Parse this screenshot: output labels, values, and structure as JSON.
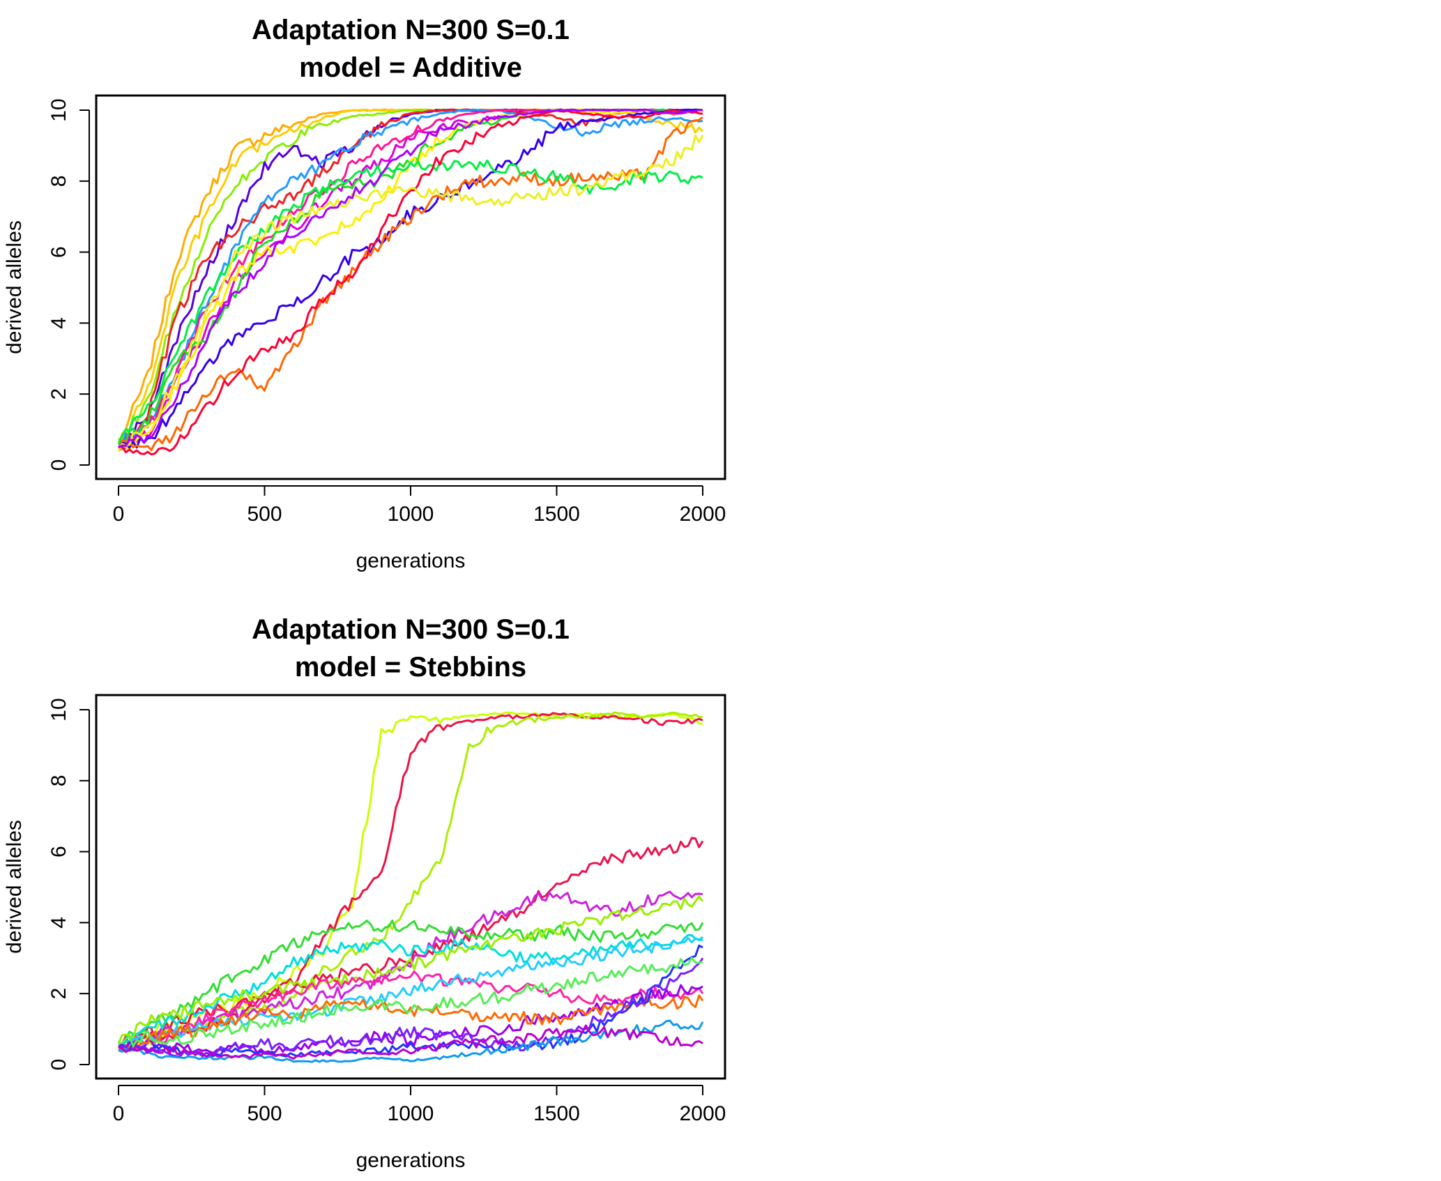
{
  "chart_data": [
    {
      "type": "line",
      "title": [
        "Adaptation N=300 S=0.1",
        "model = Additive"
      ],
      "xlabel": "generations",
      "ylabel": "derived alleles",
      "xlim": [
        0,
        2000
      ],
      "ylim": [
        0,
        10
      ],
      "x_ticks": [
        "0",
        "500",
        "1000",
        "1500",
        "2000"
      ],
      "y_ticks": [
        "0",
        "2",
        "4",
        "6",
        "8",
        "10"
      ],
      "grid": false,
      "legend": "none",
      "x": [
        0,
        100,
        200,
        300,
        400,
        500,
        600,
        700,
        800,
        900,
        1000,
        1100,
        1200,
        1300,
        1400,
        1500,
        1600,
        1700,
        1800,
        1900,
        2000
      ],
      "series": [
        {
          "color": "#ffaa00",
          "values": [
            0.6,
            2.5,
            5.8,
            7.6,
            8.9,
            9.3,
            9.6,
            9.9,
            10.0,
            10.0,
            10.0,
            10.0,
            10.0,
            10.0,
            10.0,
            10.0,
            10.0,
            10.0,
            10.0,
            10.0,
            10.0
          ]
        },
        {
          "color": "#ffcc00",
          "values": [
            0.5,
            2.1,
            5.2,
            7.0,
            8.5,
            9.1,
            9.4,
            9.8,
            10.0,
            10.0,
            10.0,
            10.0,
            10.0,
            10.0,
            10.0,
            10.0,
            9.9,
            10.0,
            9.8,
            9.6,
            9.4
          ]
        },
        {
          "color": "#88ee00",
          "values": [
            0.7,
            1.8,
            4.5,
            6.5,
            7.9,
            8.6,
            9.2,
            9.6,
            9.8,
            9.9,
            10.0,
            10.0,
            10.0,
            10.0,
            10.0,
            10.0,
            10.0,
            10.0,
            10.0,
            9.9,
            10.0
          ]
        },
        {
          "color": "#5500dd",
          "values": [
            0.5,
            1.4,
            3.6,
            5.4,
            7.0,
            8.4,
            8.9,
            8.5,
            9.0,
            9.6,
            9.9,
            10.0,
            10.0,
            10.0,
            10.0,
            10.0,
            10.0,
            10.0,
            10.0,
            10.0,
            10.0
          ]
        },
        {
          "color": "#ee2222",
          "values": [
            0.4,
            1.5,
            4.2,
            5.9,
            6.6,
            7.2,
            7.6,
            8.3,
            9.0,
            9.6,
            9.9,
            10.0,
            10.0,
            10.0,
            9.9,
            9.8,
            9.6,
            9.9,
            10.0,
            9.9,
            10.0
          ]
        },
        {
          "color": "#2299ff",
          "values": [
            0.6,
            1.1,
            2.7,
            4.5,
            6.2,
            7.4,
            8.1,
            8.4,
            9.1,
            9.3,
            9.7,
            9.9,
            10.0,
            10.0,
            9.8,
            9.5,
            9.4,
            9.6,
            9.7,
            9.8,
            9.7
          ]
        },
        {
          "color": "#dd00dd",
          "values": [
            0.5,
            0.9,
            2.4,
            3.8,
            5.1,
            6.0,
            6.7,
            7.4,
            8.0,
            8.6,
            9.2,
            9.5,
            9.7,
            9.8,
            9.9,
            10.0,
            10.0,
            10.0,
            10.0,
            10.0,
            10.0
          ]
        },
        {
          "color": "#ff1493",
          "values": [
            0.5,
            1.0,
            2.6,
            4.4,
            5.5,
            6.4,
            7.1,
            7.8,
            8.4,
            9.0,
            9.4,
            9.7,
            9.9,
            10.0,
            10.0,
            10.0,
            10.0,
            10.0,
            10.0,
            9.9,
            10.0
          ]
        },
        {
          "color": "#22dd22",
          "values": [
            0.5,
            1.3,
            2.9,
            3.6,
            4.9,
            6.4,
            6.8,
            7.7,
            7.9,
            8.0,
            8.6,
            9.2,
            9.5,
            9.7,
            9.9,
            10.0,
            10.0,
            10.0,
            10.0,
            10.0,
            10.0
          ]
        },
        {
          "color": "#ffee00",
          "values": [
            0.4,
            0.8,
            2.3,
            4.0,
            5.3,
            6.0,
            6.1,
            6.4,
            6.9,
            7.5,
            8.4,
            9.2,
            9.6,
            9.8,
            9.9,
            10.0,
            10.0,
            9.9,
            10.0,
            9.9,
            10.0
          ]
        },
        {
          "color": "#3300ee",
          "values": [
            0.5,
            0.7,
            1.6,
            2.8,
            3.6,
            4.1,
            4.5,
            5.2,
            5.9,
            6.3,
            7.1,
            7.5,
            7.9,
            8.3,
            8.8,
            9.5,
            9.7,
            9.8,
            9.9,
            10.0,
            10.0
          ]
        },
        {
          "color": "#ff6600",
          "values": [
            0.6,
            0.5,
            0.9,
            2.1,
            2.6,
            2.2,
            3.3,
            4.6,
            5.4,
            6.3,
            7.0,
            7.6,
            8.0,
            8.0,
            8.1,
            8.0,
            8.1,
            8.1,
            8.2,
            9.3,
            9.8
          ]
        },
        {
          "color": "#00ee44",
          "values": [
            0.6,
            1.6,
            3.1,
            4.8,
            5.9,
            6.6,
            7.3,
            7.8,
            8.1,
            8.3,
            8.4,
            8.4,
            8.5,
            8.4,
            8.2,
            8.1,
            7.8,
            7.9,
            8.1,
            8.1,
            8.1
          ]
        },
        {
          "color": "#ff0033",
          "values": [
            0.5,
            0.3,
            0.6,
            1.6,
            2.6,
            3.2,
            3.6,
            4.7,
            5.4,
            6.6,
            7.8,
            8.6,
            9.1,
            9.5,
            9.8,
            10.0,
            9.9,
            9.8,
            9.8,
            10.0,
            9.9
          ]
        },
        {
          "color": "#eeee22",
          "values": [
            0.5,
            1.0,
            2.4,
            4.3,
            5.9,
            6.6,
            7.0,
            7.3,
            7.5,
            7.6,
            7.7,
            7.6,
            7.5,
            7.4,
            7.6,
            7.7,
            7.8,
            8.1,
            8.3,
            8.6,
            9.3
          ]
        },
        {
          "color": "#aa00ff",
          "values": [
            0.5,
            0.8,
            1.9,
            3.6,
            4.8,
            5.8,
            6.5,
            7.0,
            7.6,
            8.2,
            8.9,
            9.4,
            9.6,
            9.8,
            9.9,
            10.0,
            10.0,
            10.0,
            10.0,
            9.9,
            10.0
          ]
        }
      ]
    },
    {
      "type": "line",
      "title": [
        "Adaptation N=300 S=0.1",
        "model = Stebbins"
      ],
      "xlabel": "generations",
      "ylabel": "derived alleles",
      "xlim": [
        0,
        2000
      ],
      "ylim": [
        0,
        10
      ],
      "x_ticks": [
        "0",
        "500",
        "1000",
        "1500",
        "2000"
      ],
      "y_ticks": [
        "0",
        "2",
        "4",
        "6",
        "8",
        "10"
      ],
      "grid": false,
      "legend": "none",
      "x": [
        0,
        100,
        200,
        300,
        400,
        500,
        600,
        700,
        800,
        900,
        1000,
        1100,
        1200,
        1300,
        1400,
        1500,
        1600,
        1700,
        1800,
        1900,
        2000
      ],
      "series": [
        {
          "color": "#ccff00",
          "values": [
            0.5,
            0.9,
            1.1,
            1.4,
            1.7,
            2.0,
            2.6,
            3.2,
            4.6,
            9.3,
            9.8,
            9.7,
            9.8,
            9.9,
            9.9,
            9.8,
            9.9,
            9.8,
            9.8,
            9.9,
            9.6
          ]
        },
        {
          "color": "#ee1144",
          "values": [
            0.6,
            0.8,
            1.2,
            1.5,
            1.6,
            1.9,
            2.4,
            3.5,
            4.6,
            5.4,
            8.8,
            9.5,
            9.7,
            9.8,
            9.8,
            9.9,
            9.8,
            9.8,
            9.7,
            9.6,
            9.7
          ]
        },
        {
          "color": "#aaee00",
          "values": [
            0.4,
            0.7,
            0.9,
            1.1,
            1.5,
            1.6,
            1.9,
            2.6,
            3.1,
            3.6,
            4.6,
            5.7,
            8.9,
            9.6,
            9.7,
            9.8,
            9.8,
            9.9,
            9.8,
            9.9,
            9.8
          ]
        },
        {
          "color": "#e8154f",
          "values": [
            0.5,
            0.9,
            0.8,
            1.1,
            1.3,
            1.8,
            2.2,
            2.4,
            2.6,
            2.8,
            3.0,
            3.3,
            3.6,
            4.0,
            4.5,
            5.1,
            5.6,
            5.8,
            6.0,
            6.1,
            6.3
          ]
        },
        {
          "color": "#cc22dd",
          "values": [
            0.5,
            0.8,
            1.0,
            1.2,
            1.4,
            1.5,
            1.7,
            1.9,
            2.1,
            2.4,
            2.9,
            3.5,
            3.9,
            4.2,
            4.6,
            4.8,
            4.5,
            4.3,
            4.6,
            4.8,
            4.8
          ]
        },
        {
          "color": "#33dd33",
          "values": [
            0.6,
            1.1,
            1.5,
            2.0,
            2.5,
            2.9,
            3.4,
            3.8,
            3.9,
            3.9,
            3.9,
            3.8,
            3.7,
            3.7,
            3.6,
            3.8,
            3.6,
            3.6,
            3.7,
            3.8,
            4.0
          ]
        },
        {
          "color": "#00dddd",
          "values": [
            0.5,
            1.0,
            1.3,
            1.6,
            2.0,
            2.3,
            2.9,
            3.2,
            3.3,
            3.4,
            3.2,
            3.3,
            3.4,
            3.2,
            3.0,
            3.0,
            3.1,
            3.3,
            3.4,
            3.5,
            3.5
          ]
        },
        {
          "color": "#99ee00",
          "values": [
            0.6,
            1.2,
            1.4,
            1.7,
            1.9,
            2.0,
            2.2,
            2.3,
            2.4,
            2.6,
            2.8,
            3.0,
            3.2,
            3.4,
            3.6,
            3.8,
            4.0,
            4.2,
            4.3,
            4.5,
            4.6
          ]
        },
        {
          "color": "#ff22aa",
          "values": [
            0.4,
            0.6,
            0.9,
            1.3,
            1.6,
            1.8,
            2.0,
            2.2,
            2.3,
            2.4,
            2.5,
            2.4,
            2.3,
            2.1,
            2.2,
            2.0,
            1.8,
            1.9,
            2.0,
            2.0,
            2.0
          ]
        },
        {
          "color": "#22ccff",
          "values": [
            0.5,
            0.7,
            0.9,
            1.1,
            1.2,
            1.3,
            1.4,
            1.5,
            1.7,
            1.9,
            2.1,
            2.3,
            2.4,
            2.6,
            2.8,
            2.9,
            3.0,
            3.2,
            3.3,
            3.4,
            3.6
          ]
        },
        {
          "color": "#9900ee",
          "values": [
            0.5,
            0.6,
            0.5,
            0.4,
            0.5,
            0.4,
            0.5,
            0.6,
            0.7,
            0.8,
            0.7,
            0.8,
            0.9,
            1.0,
            1.2,
            1.3,
            1.5,
            1.7,
            1.9,
            2.1,
            2.2
          ]
        },
        {
          "color": "#ff6a00",
          "values": [
            0.4,
            0.7,
            0.9,
            1.0,
            1.3,
            1.5,
            1.4,
            1.6,
            1.7,
            1.6,
            1.5,
            1.5,
            1.4,
            1.4,
            1.3,
            1.3,
            1.4,
            1.6,
            1.8,
            1.7,
            1.8
          ]
        },
        {
          "color": "#2233ff",
          "values": [
            0.5,
            0.5,
            0.4,
            0.3,
            0.4,
            0.3,
            0.3,
            0.3,
            0.4,
            0.4,
            0.5,
            0.5,
            0.6,
            0.5,
            0.5,
            0.6,
            0.9,
            1.3,
            1.8,
            2.6,
            3.3
          ]
        },
        {
          "color": "#7722ff",
          "values": [
            0.5,
            0.4,
            0.3,
            0.3,
            0.5,
            0.6,
            0.5,
            0.7,
            0.6,
            0.8,
            0.9,
            0.8,
            0.7,
            0.6,
            0.5,
            0.7,
            1.1,
            1.5,
            1.9,
            2.4,
            3.0
          ]
        },
        {
          "color": "#55ee55",
          "values": [
            0.6,
            0.8,
            0.7,
            0.9,
            1.0,
            1.2,
            1.3,
            1.5,
            1.6,
            1.7,
            1.6,
            1.7,
            1.8,
            1.9,
            2.1,
            2.2,
            2.4,
            2.6,
            2.7,
            2.8,
            2.9
          ]
        },
        {
          "color": "#1199ee",
          "values": [
            0.4,
            0.3,
            0.2,
            0.2,
            0.2,
            0.2,
            0.1,
            0.1,
            0.1,
            0.2,
            0.1,
            0.2,
            0.3,
            0.4,
            0.5,
            0.7,
            0.8,
            0.9,
            1.0,
            1.1,
            1.2
          ]
        },
        {
          "color": "#bb00cc",
          "values": [
            0.5,
            0.4,
            0.4,
            0.3,
            0.2,
            0.3,
            0.2,
            0.3,
            0.4,
            0.3,
            0.4,
            0.5,
            0.6,
            0.7,
            0.8,
            0.9,
            1.0,
            0.9,
            0.8,
            0.7,
            0.6
          ]
        }
      ]
    }
  ]
}
